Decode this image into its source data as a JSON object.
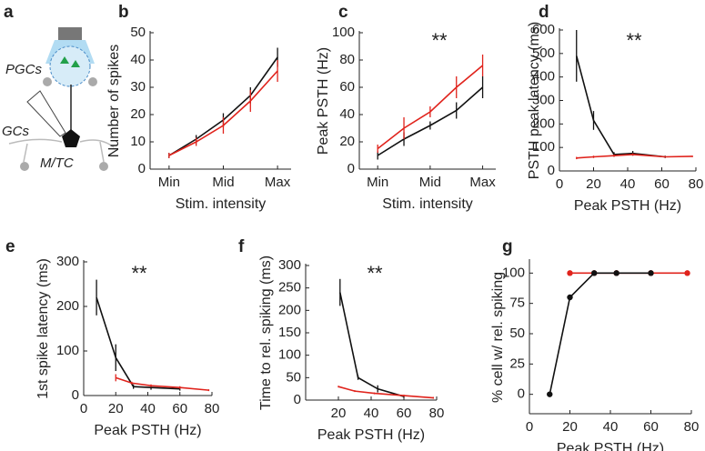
{
  "panel_labels": [
    "a",
    "b",
    "c",
    "d",
    "e",
    "f",
    "g"
  ],
  "diagram": {
    "labels": [
      "PGCs",
      "GCs",
      "M/TC"
    ]
  },
  "chart_data": [
    {
      "type": "line",
      "xlabel": "Stim. intensity",
      "ylabel": "Number of spikes",
      "x": [
        1,
        2,
        3,
        4,
        5
      ],
      "xlim": [
        0.3,
        5.5
      ],
      "ylim": [
        0,
        50
      ],
      "xticks": [
        {
          "value": 1,
          "label": "Min"
        },
        {
          "value": 3,
          "label": "Mid"
        },
        {
          "value": 5,
          "label": "Max"
        }
      ],
      "yticks": [
        0,
        10,
        20,
        30,
        40,
        50
      ],
      "series": [
        {
          "color": "#111111",
          "values": [
            5,
            11,
            18,
            27,
            41
          ],
          "errors": [
            1,
            1.5,
            2.5,
            3,
            3.5
          ]
        },
        {
          "color": "#e0231c",
          "values": [
            5,
            10,
            16,
            25,
            36
          ],
          "errors": [
            1,
            1.5,
            3,
            4,
            4
          ]
        }
      ]
    },
    {
      "type": "line",
      "xlabel": "Stim. intensity",
      "ylabel": "Peak PSTH (Hz)",
      "annotation": "**",
      "x": [
        1,
        2,
        3,
        4,
        5
      ],
      "xlim": [
        0.3,
        5.5
      ],
      "ylim": [
        0,
        100
      ],
      "xticks": [
        {
          "value": 1,
          "label": "Min"
        },
        {
          "value": 3,
          "label": "Mid"
        },
        {
          "value": 5,
          "label": "Max"
        }
      ],
      "yticks": [
        0,
        20,
        40,
        60,
        80,
        100
      ],
      "series": [
        {
          "color": "#111111",
          "values": [
            10,
            22,
            32,
            43,
            60
          ],
          "errors": [
            3,
            5,
            3,
            6,
            8
          ]
        },
        {
          "color": "#e0231c",
          "values": [
            15,
            30,
            42,
            60,
            76
          ],
          "errors": [
            3,
            8,
            4,
            8,
            8
          ]
        }
      ]
    },
    {
      "type": "line",
      "xlabel": "Peak PSTH (Hz)",
      "ylabel": "PSTH peak latency (ms)",
      "annotation": "**",
      "xlim": [
        0,
        80
      ],
      "ylim": [
        0,
        600
      ],
      "xticks": [
        0,
        20,
        40,
        60,
        80
      ],
      "yticks": [
        0,
        100,
        200,
        300,
        400,
        500,
        600
      ],
      "series": [
        {
          "color": "#111111",
          "x": [
            10,
            20,
            32,
            43,
            62
          ],
          "values": [
            490,
            215,
            70,
            75,
            60
          ],
          "errors": [
            110,
            40,
            10,
            10,
            5
          ]
        },
        {
          "color": "#e0231c",
          "x": [
            10,
            20,
            32,
            43,
            62,
            78
          ],
          "values": [
            55,
            60,
            65,
            70,
            60,
            62
          ],
          "errors": [
            5,
            5,
            5,
            5,
            3,
            3
          ]
        }
      ]
    },
    {
      "type": "line",
      "xlabel": "Peak PSTH (Hz)",
      "ylabel": "1st spike latency (ms)",
      "annotation": "**",
      "xlim": [
        0,
        80
      ],
      "ylim": [
        0,
        300
      ],
      "xticks": [
        0,
        20,
        40,
        60,
        80
      ],
      "yticks": [
        0,
        100,
        200,
        300
      ],
      "series": [
        {
          "color": "#111111",
          "x": [
            8,
            20,
            31,
            42,
            60
          ],
          "values": [
            220,
            85,
            20,
            18,
            15
          ],
          "errors": [
            40,
            30,
            5,
            5,
            4
          ]
        },
        {
          "color": "#e0231c",
          "x": [
            20,
            30,
            42,
            60,
            78
          ],
          "values": [
            40,
            28,
            22,
            18,
            12
          ],
          "errors": [
            8,
            3,
            3,
            3,
            2
          ]
        }
      ]
    },
    {
      "type": "line",
      "xlabel": "Peak PSTH (Hz)",
      "ylabel": "Time to rel. spiking (ms)",
      "annotation": "**",
      "xlim": [
        0,
        80
      ],
      "ylim": [
        0,
        300
      ],
      "xticks": [
        20,
        40,
        60,
        80
      ],
      "yticks": [
        0,
        50,
        100,
        150,
        200,
        250,
        300
      ],
      "series": [
        {
          "color": "#111111",
          "x": [
            21,
            32,
            44,
            60
          ],
          "values": [
            240,
            50,
            25,
            8
          ],
          "errors": [
            30,
            5,
            8,
            3
          ]
        },
        {
          "color": "#e0231c",
          "x": [
            20,
            30,
            42,
            60,
            78
          ],
          "values": [
            30,
            20,
            15,
            10,
            5
          ],
          "errors": [
            2,
            2,
            2,
            2,
            2
          ]
        }
      ]
    },
    {
      "type": "line",
      "xlabel": "Peak PSTH (Hz)",
      "ylabel": "% cell w/ rel. spiking",
      "marker": "o",
      "xlim": [
        0,
        80
      ],
      "ylim": [
        -16,
        110
      ],
      "xticks": [
        0,
        20,
        40,
        60,
        80
      ],
      "yticks": [
        0,
        25,
        50,
        75,
        100
      ],
      "series": [
        {
          "color": "#e0231c",
          "x": [
            20,
            32,
            43,
            60,
            78
          ],
          "values": [
            100,
            100,
            100,
            100,
            100
          ]
        },
        {
          "color": "#111111",
          "x": [
            10,
            20,
            32,
            43,
            60
          ],
          "values": [
            0,
            80,
            100,
            100,
            100
          ]
        }
      ]
    }
  ]
}
